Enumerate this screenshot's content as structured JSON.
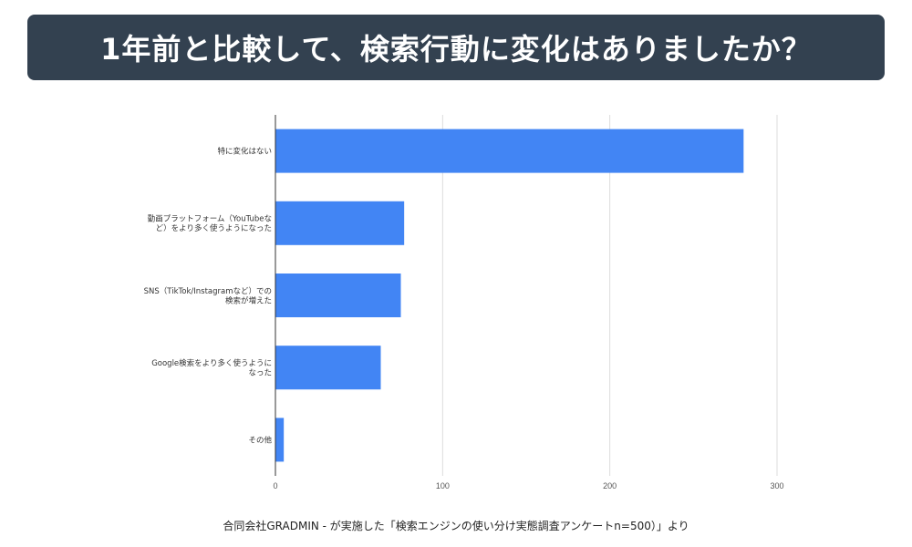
{
  "header": {
    "title": "1年前と比較して、検索行動に変化はありましたか？"
  },
  "footer": {
    "source": "合同会社GRADMIN - が実施した「検索エンジンの使い分け実態調査アンケートn=500）」より"
  },
  "colors": {
    "title_bg": "#334150",
    "bar": "#4285f4",
    "grid": "#dddddd",
    "axis": "#333333"
  },
  "chart_data": {
    "type": "bar",
    "orientation": "horizontal",
    "title": "1年前と比較して、検索行動に変化はありましたか？",
    "categories": [
      [
        "特に変化はない"
      ],
      [
        "動画プラットフォーム（YouTubeな",
        "ど）をより多く使うようになった"
      ],
      [
        "SNS（TikTok/Instagramなど）での",
        "検索が増えた"
      ],
      [
        "Google検索をより多く使うように",
        "なった"
      ],
      [
        "その他"
      ]
    ],
    "values": [
      280,
      77,
      75,
      63,
      5
    ],
    "xlim": [
      0,
      300
    ],
    "xticks": [
      0,
      100,
      200,
      300
    ],
    "xlabel": "",
    "ylabel": "",
    "grid": true
  }
}
